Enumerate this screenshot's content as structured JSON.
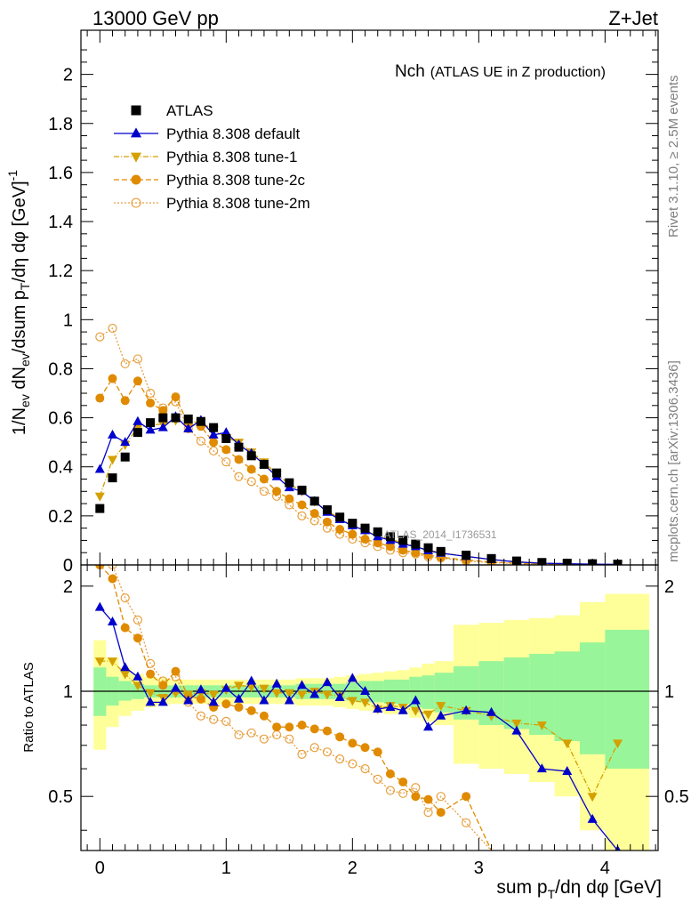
{
  "header": {
    "left": "13000 GeV pp",
    "right": "Z+Jet"
  },
  "side_labels": {
    "rivet": "Rivet 3.1.10, ≥ 2.5M events",
    "mcplots": "mcplots.cern.ch [arXiv:1306.3436]"
  },
  "chart_data": [
    {
      "type": "scatter",
      "title": "Nch",
      "subtitle": "(ATLAS UE in Z production)",
      "ylabel": "1/N_ev dN_ev/dsum p_T/dη dφ [GeV]^-1",
      "ylim": [
        0,
        2.18
      ],
      "xlim": [
        -0.15,
        4.42
      ],
      "yticks": [
        "0",
        "0.2",
        "0.4",
        "0.6",
        "0.8",
        "1",
        "1.2",
        "1.4",
        "1.6",
        "1.8",
        "2"
      ],
      "watermark": "ATLAS_2014_I1736531",
      "legend_position": "top-left",
      "series": [
        {
          "name": "ATLAS",
          "color": "#000000",
          "marker": "square",
          "x": [
            0,
            0.1,
            0.2,
            0.3,
            0.4,
            0.5,
            0.6,
            0.7,
            0.8,
            0.9,
            1.0,
            1.1,
            1.2,
            1.3,
            1.4,
            1.5,
            1.6,
            1.7,
            1.8,
            1.9,
            2.0,
            2.1,
            2.2,
            2.3,
            2.4,
            2.5,
            2.6,
            2.7,
            2.9,
            3.1,
            3.3,
            3.5,
            3.7,
            3.9,
            4.1
          ],
          "y": [
            0.23,
            0.355,
            0.44,
            0.54,
            0.58,
            0.6,
            0.6,
            0.595,
            0.585,
            0.56,
            0.515,
            0.48,
            0.445,
            0.41,
            0.375,
            0.335,
            0.305,
            0.26,
            0.225,
            0.195,
            0.17,
            0.15,
            0.135,
            0.115,
            0.1,
            0.085,
            0.07,
            0.055,
            0.04,
            0.026,
            0.016,
            0.01,
            0.007,
            0.005,
            0.003
          ]
        },
        {
          "name": "Pythia 8.308 default",
          "color": "#0000cc",
          "marker": "triangle-up",
          "line": "solid",
          "x": [
            0,
            0.1,
            0.2,
            0.3,
            0.4,
            0.5,
            0.6,
            0.7,
            0.8,
            0.9,
            1.0,
            1.1,
            1.2,
            1.3,
            1.4,
            1.5,
            1.6,
            1.7,
            1.8,
            1.9,
            2.0,
            2.1,
            2.2,
            2.3,
            2.4,
            2.5,
            2.6,
            2.7,
            2.9,
            3.1,
            3.3,
            3.5,
            3.7,
            3.9,
            4.1
          ],
          "y": [
            0.39,
            0.53,
            0.5,
            0.585,
            0.55,
            0.56,
            0.605,
            0.555,
            0.59,
            0.53,
            0.54,
            0.49,
            0.455,
            0.41,
            0.36,
            0.315,
            0.3,
            0.26,
            0.215,
            0.185,
            0.16,
            0.14,
            0.115,
            0.1,
            0.085,
            0.075,
            0.058,
            0.048,
            0.035,
            0.022,
            0.012,
            0.007,
            0.005,
            0.003,
            0.002
          ]
        },
        {
          "name": "Pythia 8.308 tune-1",
          "color": "#d4a000",
          "marker": "triangle-down",
          "line": "dashdot",
          "x": [
            0,
            0.1,
            0.2,
            0.3,
            0.4,
            0.5,
            0.6,
            0.7,
            0.8,
            0.9,
            1.0,
            1.1,
            1.2,
            1.3,
            1.4,
            1.5,
            1.6,
            1.7,
            1.8,
            1.9,
            2.0,
            2.1,
            2.2,
            2.3,
            2.4,
            2.5,
            2.6,
            2.7,
            2.9,
            3.1,
            3.3,
            3.5,
            3.7,
            3.9,
            4.1
          ],
          "y": [
            0.28,
            0.43,
            0.49,
            0.56,
            0.57,
            0.575,
            0.59,
            0.585,
            0.58,
            0.55,
            0.52,
            0.5,
            0.46,
            0.42,
            0.37,
            0.33,
            0.3,
            0.26,
            0.22,
            0.19,
            0.16,
            0.14,
            0.12,
            0.105,
            0.09,
            0.075,
            0.06,
            0.05,
            0.035,
            0.022,
            0.013,
            0.008,
            0.005,
            0.003,
            0.002
          ]
        },
        {
          "name": "Pythia 8.308 tune-2c",
          "color": "#e08a00",
          "marker": "circle-filled",
          "line": "dashed",
          "x": [
            0,
            0.1,
            0.2,
            0.3,
            0.4,
            0.5,
            0.6,
            0.7,
            0.8,
            0.9,
            1.0,
            1.1,
            1.2,
            1.3,
            1.4,
            1.5,
            1.6,
            1.7,
            1.8,
            1.9,
            2.0,
            2.1,
            2.2,
            2.3,
            2.4,
            2.5,
            2.6,
            2.7,
            2.9,
            3.1,
            3.3,
            3.5,
            3.7,
            3.9,
            4.1
          ],
          "y": [
            0.68,
            0.76,
            0.67,
            0.75,
            0.66,
            0.63,
            0.685,
            0.575,
            0.565,
            0.5,
            0.47,
            0.43,
            0.39,
            0.35,
            0.3,
            0.27,
            0.245,
            0.21,
            0.175,
            0.145,
            0.125,
            0.105,
            0.09,
            0.075,
            0.06,
            0.05,
            0.04,
            0.032,
            0.02,
            0.012,
            0.007,
            0.004,
            0.002,
            0.0015,
            0.001
          ]
        },
        {
          "name": "Pythia 8.308 tune-2m",
          "color": "#e8a040",
          "marker": "circle-open",
          "line": "dotted",
          "x": [
            0,
            0.1,
            0.2,
            0.3,
            0.4,
            0.5,
            0.6,
            0.7,
            0.8,
            0.9,
            1.0,
            1.1,
            1.2,
            1.3,
            1.4,
            1.5,
            1.6,
            1.7,
            1.8,
            1.9,
            2.0,
            2.1,
            2.2,
            2.3,
            2.4,
            2.5,
            2.6,
            2.7,
            2.9,
            3.1,
            3.3,
            3.5,
            3.7,
            3.9,
            4.1
          ],
          "y": [
            0.93,
            0.965,
            0.82,
            0.84,
            0.7,
            0.64,
            0.665,
            0.555,
            0.505,
            0.465,
            0.42,
            0.36,
            0.34,
            0.3,
            0.28,
            0.245,
            0.2,
            0.18,
            0.15,
            0.125,
            0.105,
            0.09,
            0.075,
            0.06,
            0.05,
            0.045,
            0.033,
            0.028,
            0.016,
            0.009,
            0.005,
            0.003,
            0.002,
            0.001,
            0.001
          ]
        }
      ]
    },
    {
      "type": "scatter",
      "ylabel": "Ratio to ATLAS",
      "xlabel": "sum p_T/dη dφ [GeV]",
      "ylim": [
        0.35,
        2.3
      ],
      "xlim": [
        -0.15,
        4.42
      ],
      "xticks": [
        "0",
        "1",
        "2",
        "3",
        "4"
      ],
      "yticks": [
        "0.5",
        "1",
        "2"
      ],
      "reference_line": 1,
      "bands": {
        "x_edges": [
          -0.05,
          0.05,
          0.15,
          0.25,
          0.35,
          0.45,
          0.55,
          0.65,
          0.75,
          0.85,
          0.95,
          1.05,
          1.15,
          1.25,
          1.35,
          1.45,
          1.55,
          1.65,
          1.75,
          1.85,
          1.95,
          2.05,
          2.15,
          2.25,
          2.35,
          2.45,
          2.55,
          2.65,
          2.8,
          3.0,
          3.2,
          3.4,
          3.6,
          3.8,
          4.0,
          4.35
        ],
        "stat": [
          [
            0.85,
            1.17
          ],
          [
            0.91,
            1.1
          ],
          [
            0.94,
            1.07
          ],
          [
            0.95,
            1.05
          ],
          [
            0.96,
            1.04
          ],
          [
            0.96,
            1.04
          ],
          [
            0.96,
            1.04
          ],
          [
            0.96,
            1.04
          ],
          [
            0.96,
            1.04
          ],
          [
            0.96,
            1.04
          ],
          [
            0.96,
            1.04
          ],
          [
            0.96,
            1.04
          ],
          [
            0.96,
            1.04
          ],
          [
            0.96,
            1.04
          ],
          [
            0.96,
            1.04
          ],
          [
            0.96,
            1.04
          ],
          [
            0.95,
            1.05
          ],
          [
            0.95,
            1.05
          ],
          [
            0.95,
            1.05
          ],
          [
            0.95,
            1.05
          ],
          [
            0.94,
            1.06
          ],
          [
            0.93,
            1.07
          ],
          [
            0.93,
            1.07
          ],
          [
            0.92,
            1.08
          ],
          [
            0.92,
            1.08
          ],
          [
            0.9,
            1.1
          ],
          [
            0.89,
            1.11
          ],
          [
            0.87,
            1.13
          ],
          [
            0.83,
            1.18
          ],
          [
            0.8,
            1.22
          ],
          [
            0.78,
            1.25
          ],
          [
            0.75,
            1.28
          ],
          [
            0.72,
            1.3
          ],
          [
            0.66,
            1.38
          ],
          [
            0.6,
            1.5
          ]
        ],
        "total": [
          [
            0.68,
            1.4
          ],
          [
            0.79,
            1.25
          ],
          [
            0.85,
            1.17
          ],
          [
            0.88,
            1.12
          ],
          [
            0.9,
            1.1
          ],
          [
            0.91,
            1.09
          ],
          [
            0.92,
            1.08
          ],
          [
            0.92,
            1.08
          ],
          [
            0.92,
            1.08
          ],
          [
            0.92,
            1.08
          ],
          [
            0.92,
            1.08
          ],
          [
            0.92,
            1.08
          ],
          [
            0.92,
            1.08
          ],
          [
            0.92,
            1.08
          ],
          [
            0.92,
            1.08
          ],
          [
            0.92,
            1.08
          ],
          [
            0.91,
            1.09
          ],
          [
            0.91,
            1.09
          ],
          [
            0.91,
            1.09
          ],
          [
            0.9,
            1.1
          ],
          [
            0.89,
            1.11
          ],
          [
            0.88,
            1.12
          ],
          [
            0.87,
            1.13
          ],
          [
            0.86,
            1.14
          ],
          [
            0.86,
            1.15
          ],
          [
            0.84,
            1.17
          ],
          [
            0.82,
            1.2
          ],
          [
            0.8,
            1.22
          ],
          [
            0.62,
            1.55
          ],
          [
            0.6,
            1.57
          ],
          [
            0.58,
            1.6
          ],
          [
            0.55,
            1.62
          ],
          [
            0.5,
            1.65
          ],
          [
            0.4,
            1.8
          ],
          [
            0.35,
            1.9
          ]
        ]
      },
      "series": [
        {
          "name": "Pythia 8.308 default",
          "color": "#0000cc",
          "marker": "triangle-up",
          "line": "solid",
          "x": [
            0,
            0.1,
            0.2,
            0.3,
            0.4,
            0.5,
            0.6,
            0.7,
            0.8,
            0.9,
            1.0,
            1.1,
            1.2,
            1.3,
            1.4,
            1.5,
            1.6,
            1.7,
            1.8,
            1.9,
            2.0,
            2.1,
            2.2,
            2.3,
            2.4,
            2.5,
            2.6,
            2.7,
            2.9,
            3.1,
            3.3,
            3.5,
            3.7,
            3.9,
            4.1
          ],
          "y": [
            1.74,
            1.58,
            1.17,
            1.1,
            0.93,
            0.93,
            1.02,
            0.94,
            1.01,
            0.93,
            1.02,
            0.95,
            1.07,
            0.94,
            1.05,
            0.94,
            1.04,
            0.98,
            1.06,
            0.96,
            1.09,
            1.0,
            0.89,
            0.9,
            0.88,
            0.94,
            0.79,
            0.85,
            0.88,
            0.87,
            0.77,
            0.6,
            0.59,
            0.43,
            0.35
          ]
        },
        {
          "name": "Pythia 8.308 tune-1",
          "color": "#d4a000",
          "marker": "triangle-down",
          "line": "dashdot",
          "x": [
            0,
            0.1,
            0.2,
            0.3,
            0.4,
            0.5,
            0.6,
            0.7,
            0.8,
            0.9,
            1.0,
            1.1,
            1.2,
            1.3,
            1.4,
            1.5,
            1.6,
            1.7,
            1.8,
            1.9,
            2.0,
            2.1,
            2.2,
            2.3,
            2.4,
            2.5,
            2.6,
            2.7,
            2.9,
            3.1,
            3.3,
            3.5,
            3.7,
            3.9,
            4.1
          ],
          "y": [
            1.22,
            1.22,
            1.12,
            1.04,
            0.99,
            0.96,
            0.99,
            0.98,
            0.99,
            0.98,
            1.01,
            1.04,
            1.03,
            1.02,
            0.99,
            0.99,
            0.98,
            1.0,
            0.98,
            0.97,
            0.94,
            0.93,
            0.89,
            0.91,
            0.9,
            0.88,
            0.86,
            0.91,
            0.88,
            0.85,
            0.81,
            0.8,
            0.71,
            0.5,
            0.71
          ]
        },
        {
          "name": "Pythia 8.308 tune-2c",
          "color": "#e08a00",
          "marker": "circle-filled",
          "line": "dashed",
          "x": [
            0,
            0.1,
            0.2,
            0.3,
            0.4,
            0.5,
            0.6,
            0.7,
            0.8,
            0.9,
            1.0,
            1.1,
            1.2,
            1.3,
            1.4,
            1.5,
            1.6,
            1.7,
            1.8,
            1.9,
            2.0,
            2.1,
            2.2,
            2.3,
            2.4,
            2.5,
            2.6,
            2.7,
            2.9,
            3.1
          ],
          "y": [
            2.3,
            2.1,
            1.52,
            1.42,
            1.12,
            1.04,
            1.14,
            0.97,
            0.95,
            0.9,
            0.92,
            0.9,
            0.88,
            0.85,
            0.79,
            0.79,
            0.8,
            0.78,
            0.77,
            0.74,
            0.71,
            0.69,
            0.67,
            0.58,
            0.55,
            0.5,
            0.49,
            0.45,
            0.5,
            0.3
          ]
        },
        {
          "name": "Pythia 8.308 tune-2m",
          "color": "#e8a040",
          "marker": "circle-open",
          "line": "dotted",
          "x": [
            0,
            0.1,
            0.2,
            0.3,
            0.4,
            0.5,
            0.6,
            0.7,
            0.8,
            0.9,
            1.0,
            1.1,
            1.2,
            1.3,
            1.4,
            1.5,
            1.6,
            1.7,
            1.8,
            1.9,
            2.0,
            2.1,
            2.2,
            2.3,
            2.4,
            2.5,
            2.6,
            2.7,
            2.9,
            3.1
          ],
          "y": [
            2.3,
            2.3,
            1.85,
            1.6,
            1.2,
            1.07,
            1.1,
            0.93,
            0.85,
            0.83,
            0.82,
            0.75,
            0.76,
            0.73,
            0.75,
            0.73,
            0.66,
            0.69,
            0.67,
            0.64,
            0.62,
            0.6,
            0.56,
            0.52,
            0.51,
            0.53,
            0.45,
            0.5,
            0.42,
            0.3
          ]
        }
      ]
    }
  ]
}
